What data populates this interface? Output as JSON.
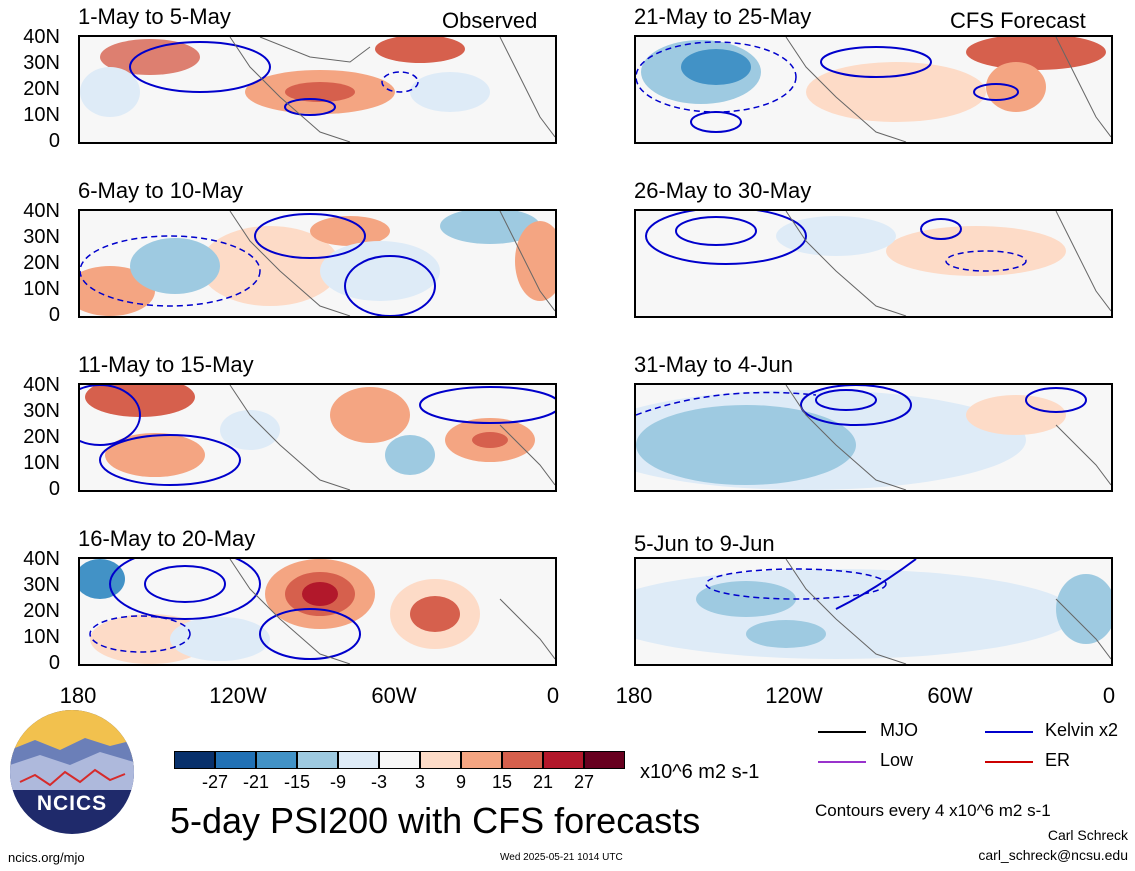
{
  "header": {
    "left_tag": "Observed",
    "right_tag": "CFS Forecast"
  },
  "panels_left": [
    {
      "title": "1-May to 5-May"
    },
    {
      "title": "6-May to 10-May"
    },
    {
      "title": "11-May to 15-May"
    },
    {
      "title": "16-May to 20-May"
    }
  ],
  "panels_right": [
    {
      "title": "21-May to 25-May"
    },
    {
      "title": "26-May to 30-May"
    },
    {
      "title": "31-May to 4-Jun"
    },
    {
      "title": "5-Jun to 9-Jun"
    }
  ],
  "axes": {
    "lat_labels": [
      "40N",
      "30N",
      "20N",
      "10N",
      "0"
    ],
    "lon_labels": [
      "180",
      "120W",
      "60W",
      "0"
    ]
  },
  "colorbar": {
    "colors": [
      "#08306b",
      "#2171b5",
      "#4292c6",
      "#9ecae1",
      "#deebf7",
      "#f7f7f7",
      "#fddbc7",
      "#f4a582",
      "#d6604d",
      "#b2182b",
      "#67001f"
    ],
    "labels": [
      "-27",
      "-21",
      "-15",
      "-9",
      "-3",
      "3",
      "9",
      "15",
      "21",
      "27"
    ],
    "units": "x10^6 m2 s-1"
  },
  "legend": [
    {
      "label": "MJO",
      "color": "#000000"
    },
    {
      "label": "Kelvin x2",
      "color": "#0000cc"
    },
    {
      "label": "Low",
      "color": "#9933cc"
    },
    {
      "label": "ER",
      "color": "#cc0000"
    }
  ],
  "main_title": "5-day PSI200 with CFS forecasts",
  "contour_note": "Contours every 4 x10^6 m2 s-1",
  "author": "Carl Schreck",
  "email": "carl_schreck@ncsu.edu",
  "url": "ncics.org/mjo",
  "timestamp": "Wed 2025-05-21 1014 UTC",
  "logo_text": "NCICS"
}
